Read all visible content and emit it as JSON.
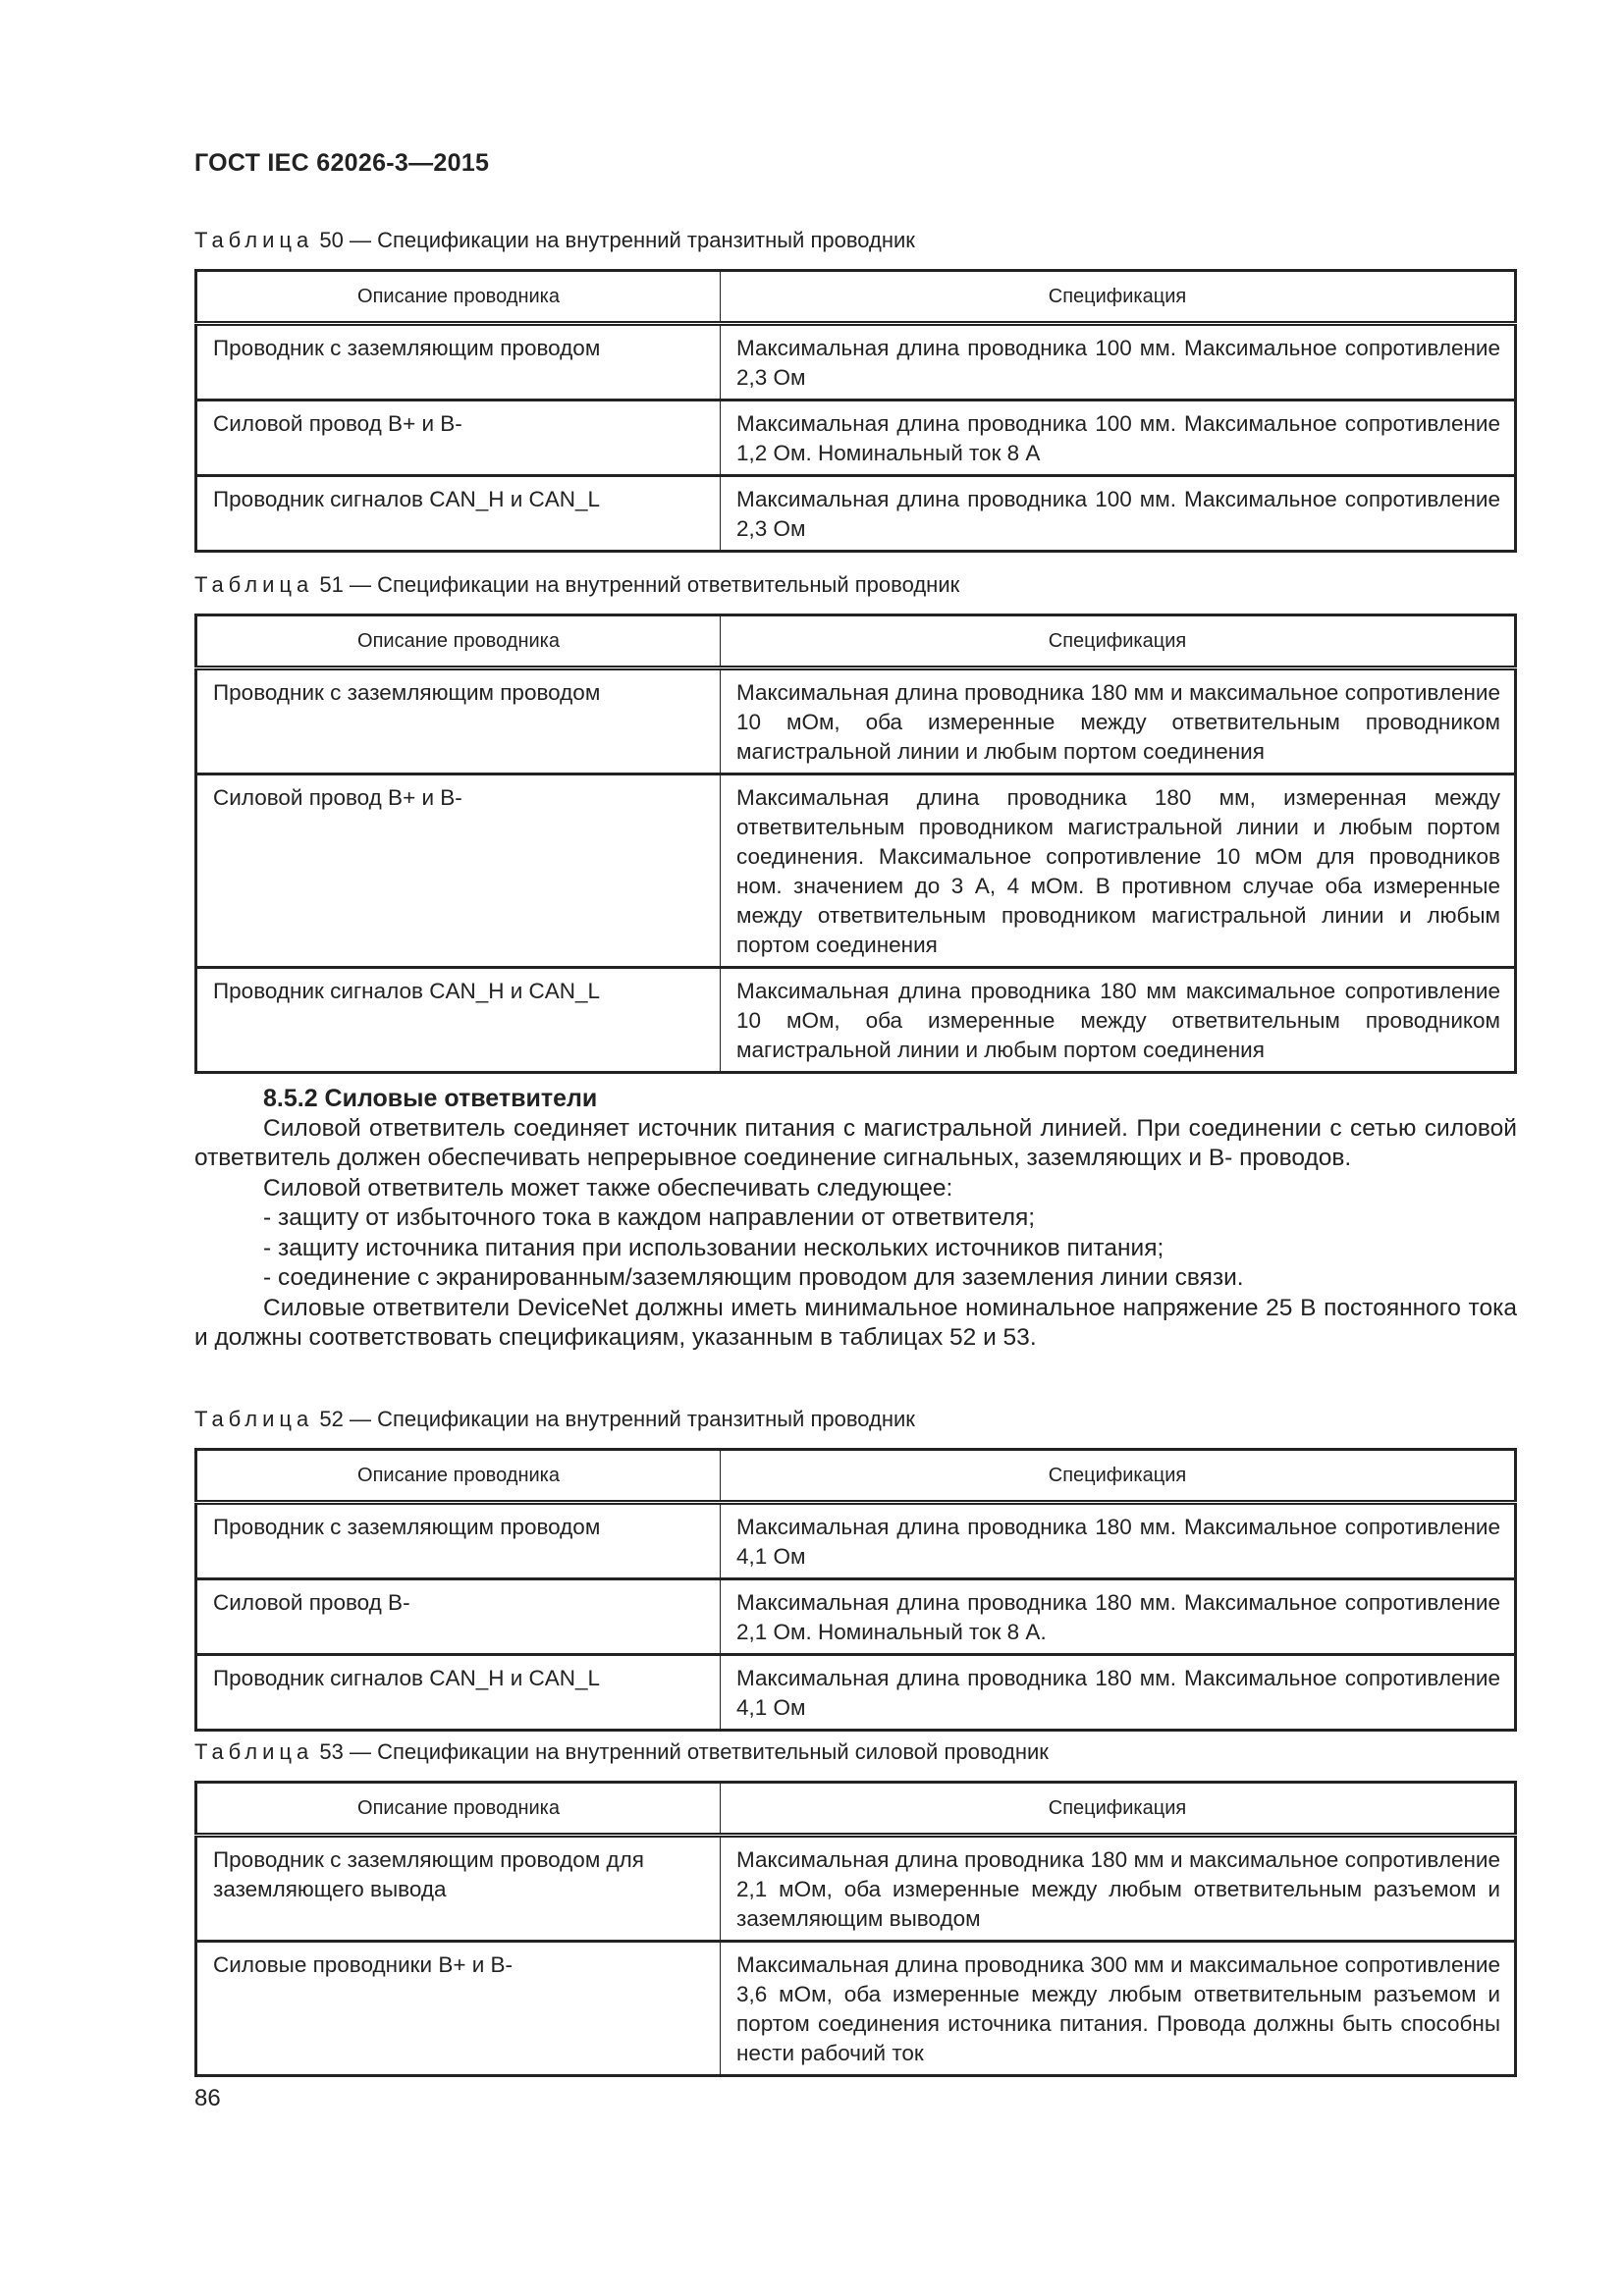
{
  "header": {
    "doc_id": "ГОСТ IEC 62026-3—2015"
  },
  "column_headers": [
    "Описание проводника",
    "Спецификация"
  ],
  "tables": [
    {
      "label": "Таблица",
      "number": "50",
      "title": "— Спецификации на внутренний транзитный проводник",
      "rows": [
        [
          "Проводник с заземляющим проводом",
          "Максимальная длина проводника 100 мм. Максимальное сопротивление 2,3 Ом"
        ],
        [
          "Силовой провод B+ и B-",
          "Максимальная длина проводника 100 мм. Максимальное сопротивление 1,2 Ом. Номинальный ток 8 А"
        ],
        [
          "Проводник сигналов CAN_H и CAN_L",
          "Максимальная длина проводника 100 мм. Максимальное сопротивление 2,3 Ом"
        ]
      ]
    },
    {
      "label": "Таблица",
      "number": "51",
      "title": "— Спецификации на внутренний ответвительный проводник",
      "rows": [
        [
          "Проводник с заземляющим проводом",
          "Максимальная длина проводника 180 мм и максимальное сопротивление 10 мОм, оба измеренные между ответвительным проводником магистральной линии и любым портом соединения"
        ],
        [
          "Силовой провод B+ и B-",
          "Максимальная длина проводника 180 мм, измеренная между ответвительным проводником магистральной линии и любым портом соединения. Максимальное сопротивление 10 мОм для проводников ном. значением до 3 А, 4 мОм. В противном случае оба измеренные между ответвительным проводником магистральной линии и любым портом соединения"
        ],
        [
          "Проводник сигналов CAN_H и CAN_L",
          "Максимальная длина проводника 180 мм максимальное сопротивление 10 мОм, оба измеренные между ответвительным проводником магистральной линии и любым портом соединения"
        ]
      ]
    },
    {
      "label": "Таблица",
      "number": "52",
      "title": "— Спецификации на внутренний транзитный проводник",
      "rows": [
        [
          "Проводник с заземляющим проводом",
          "Максимальная длина проводника 180 мм. Максимальное сопротивление 4,1 Ом"
        ],
        [
          "Силовой провод B-",
          "Максимальная длина проводника 180 мм. Максимальное сопротивление 2,1 Ом. Номинальный ток 8 А."
        ],
        [
          "Проводник сигналов CAN_H и CAN_L",
          "Максимальная длина проводника 180 мм. Максимальное сопротивление 4,1 Ом"
        ]
      ]
    },
    {
      "label": "Таблица",
      "number": "53",
      "title": "— Спецификации на внутренний ответвительный силовой проводник",
      "rows": [
        [
          "Проводник с заземляющим проводом для заземляющего вывода",
          "Максимальная длина проводника 180 мм и максимальное сопротивление 2,1 мОм, оба измеренные между любым ответвительным разъемом и заземляющим выводом"
        ],
        [
          "Силовые проводники B+ и B-",
          "Максимальная длина проводника 300 мм и максимальное сопротивление 3,6 мОм, оба измеренные между любым ответвительным разъемом и портом соединения источника питания. Провода должны быть способны нести рабочий ток"
        ]
      ]
    }
  ],
  "section": {
    "heading": "8.5.2 Силовые ответвители",
    "para1": "Силовой ответвитель соединяет источник питания с магистральной линией. При соединении с сетью силовой ответвитель должен обеспечивать непрерывное соединение сигнальных, заземляющих и B- проводов.",
    "para2": "Силовой ответвитель может также обеспечивать следующее:",
    "list": [
      "- защиту от избыточного тока в каждом направлении от ответвителя;",
      "- защиту источника питания при использовании нескольких источников питания;",
      "- соединение с экранированным/заземляющим проводом для заземления линии связи."
    ],
    "para3": "Силовые ответвители DeviceNet должны иметь минимальное номинальное напряжение 25 В постоянного тока и должны соответствовать спецификациям, указанным в таблицах 52 и 53."
  },
  "page_number": "86"
}
